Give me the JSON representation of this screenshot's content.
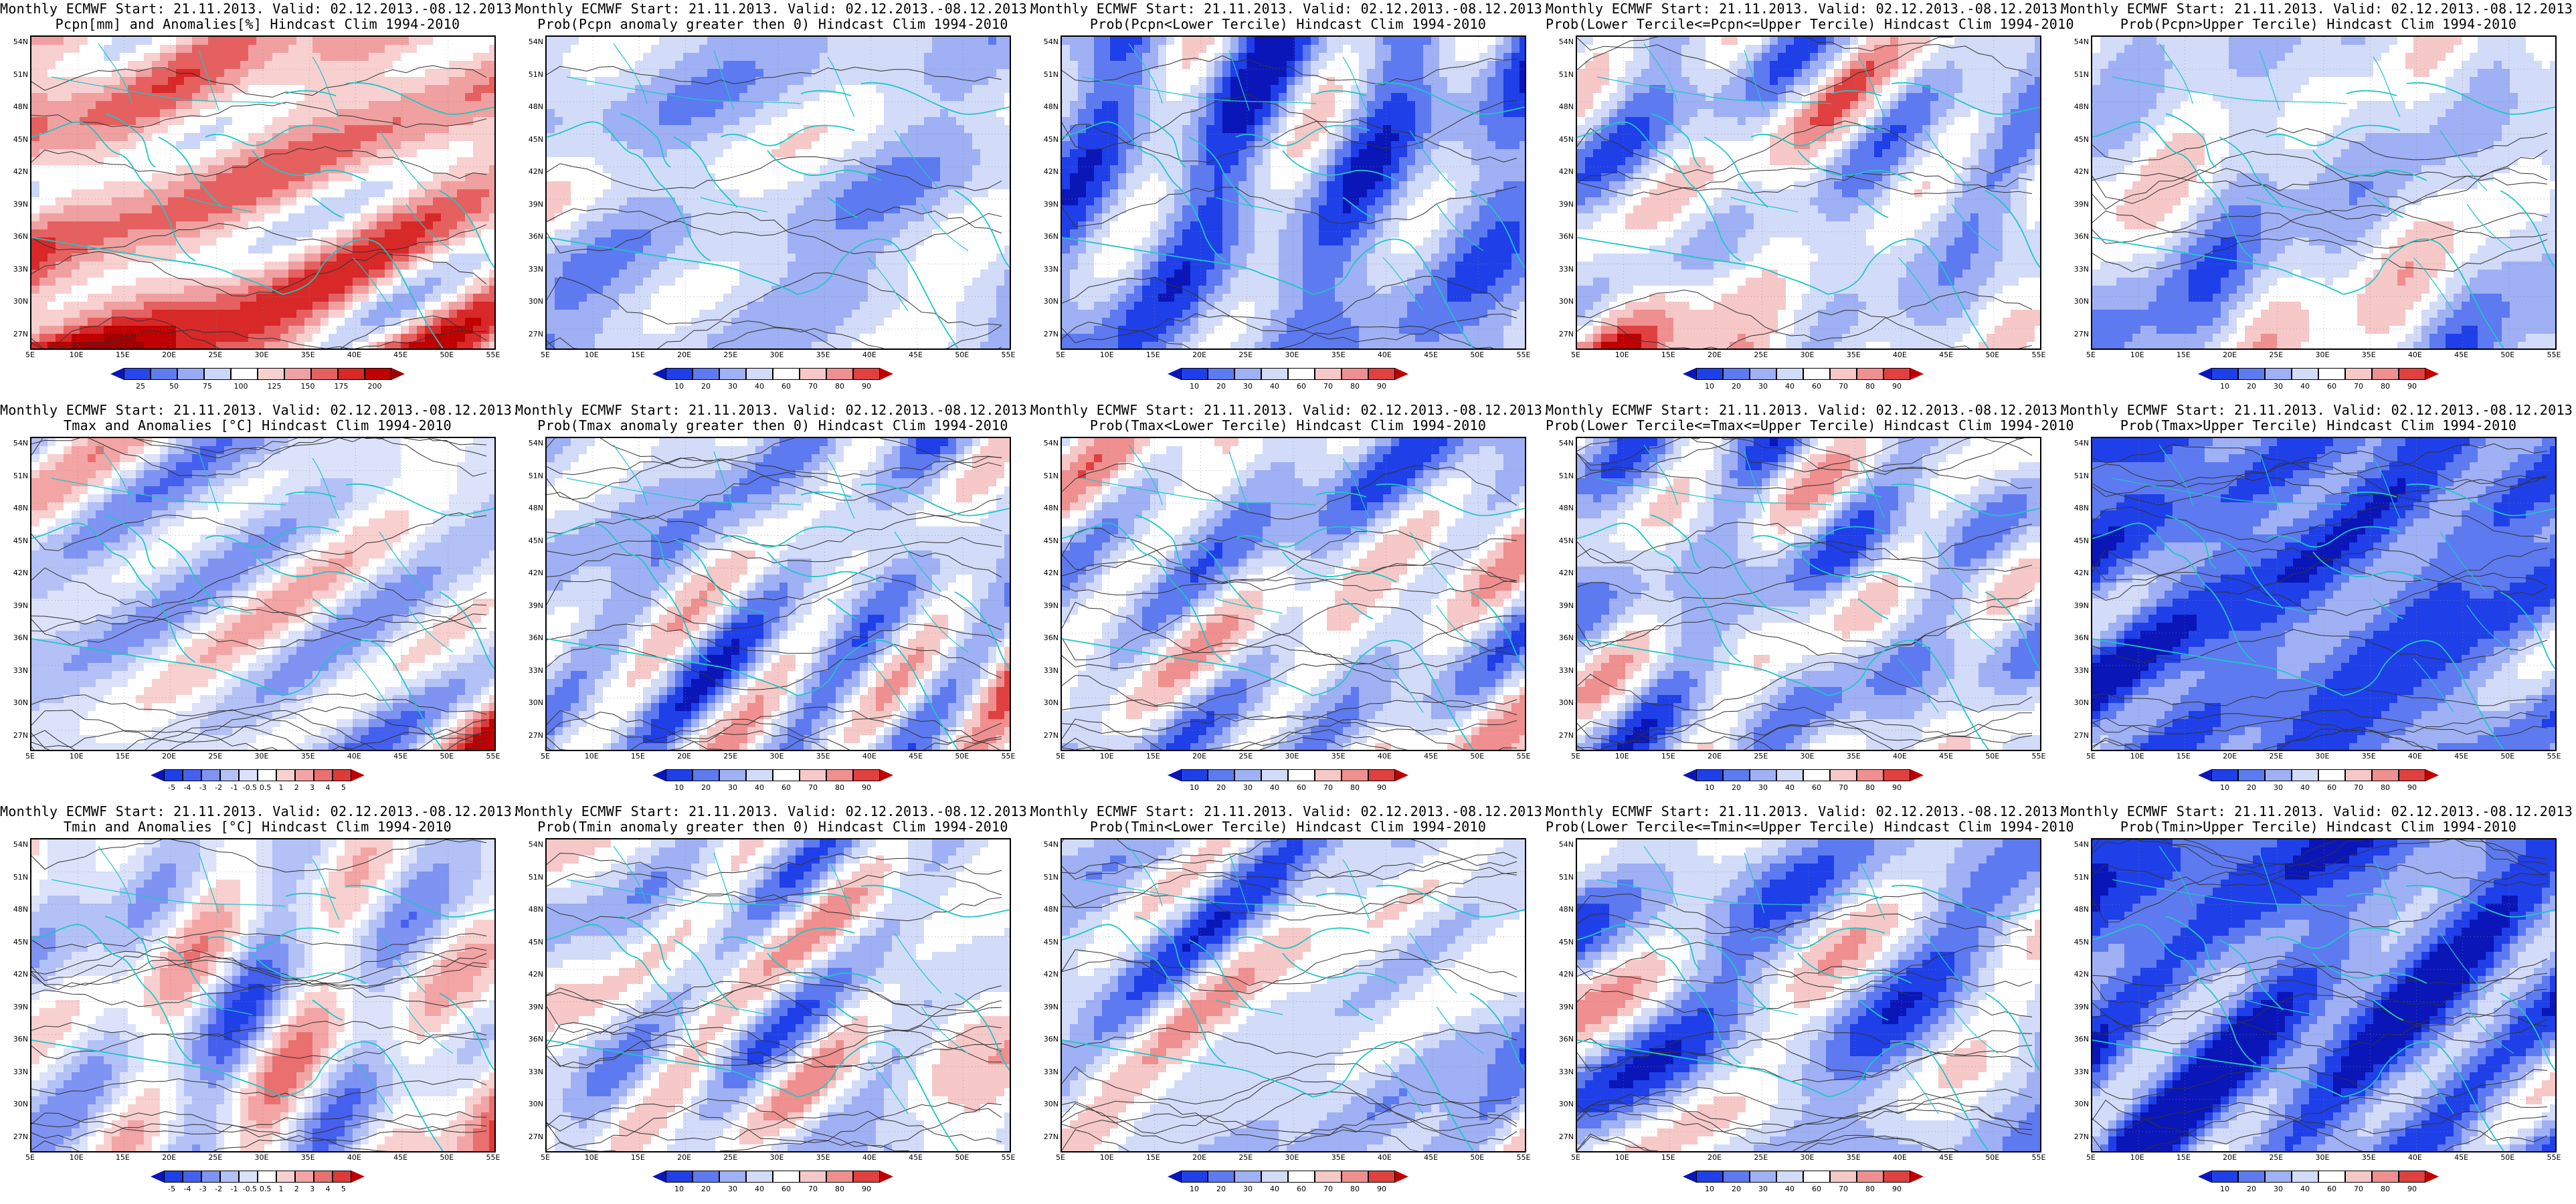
{
  "lat_labels": [
    "54N",
    "51N",
    "48N",
    "45N",
    "42N",
    "39N",
    "36N",
    "33N",
    "30N",
    "27N"
  ],
  "lon_labels": [
    "5E",
    "10E",
    "15E",
    "20E",
    "25E",
    "30E",
    "35E",
    "40E",
    "45E",
    "50E",
    "55E"
  ],
  "colors": {
    "prob": [
      "#0a16b8",
      "#1f3fe8",
      "#5d7af0",
      "#9fb0f4",
      "#d2dbf8",
      "#ffffff",
      "#f6c8c8",
      "#ef8f8f",
      "#e04040",
      "#c00000"
    ],
    "anom": [
      "#0a16b8",
      "#1f3fe8",
      "#4560ee",
      "#7f93f2",
      "#b3c1f6",
      "#dbe2fa",
      "#ffffff",
      "#f8d0d0",
      "#f3a4a4",
      "#ea6f6f",
      "#dd3a3a",
      "#c00000"
    ],
    "pcpn": [
      "#0a16b8",
      "#2846ea",
      "#5f7bf0",
      "#97aaf4",
      "#ccd6f8",
      "#ffffff",
      "#f8d0d0",
      "#f0a0a0",
      "#e66060",
      "#d82828",
      "#c00000",
      "#a00000"
    ]
  },
  "colorbars": {
    "prob": [
      "10",
      "20",
      "30",
      "40",
      "60",
      "70",
      "80",
      "90"
    ],
    "anom": [
      "-5",
      "-4",
      "-3",
      "-2",
      "-1",
      "-0.5",
      "0.5",
      "1",
      "2",
      "3",
      "4",
      "5"
    ],
    "pcpn": [
      "25",
      "50",
      "75",
      "100",
      "125",
      "150",
      "175",
      "200"
    ]
  },
  "panels": [
    {
      "title1": "Monthly ECMWF Start: 21.11.2013. Valid: 02.12.2013.-08.12.2013.",
      "title2": "Pcpn[mm] and Anomalies[%]",
      "suffix": " Hindcast Clim 1994-2010",
      "scale": "pcpn",
      "bias": 0.15,
      "seed": 3,
      "warmSouth": true
    },
    {
      "title1": "Monthly ECMWF Start: 21.11.2013. Valid: 02.12.2013.-08.12.2013.",
      "title2": "Prob(Pcpn anomaly greater then 0)",
      "suffix": " Hindcast Clim 1994-2010",
      "scale": "prob",
      "bias": -0.15,
      "seed": 7
    },
    {
      "title1": "Monthly ECMWF Start: 21.11.2013. Valid: 02.12.2013.-08.12.2013.",
      "title2": "Prob(Pcpn<Lower Tercile)",
      "suffix": " Hindcast Clim 1994-2010",
      "scale": "prob",
      "bias": -0.35,
      "seed": 11
    },
    {
      "title1": "Monthly ECMWF Start: 21.11.2013. Valid: 02.12.2013.-08.12.2013.",
      "title2": "Prob(Lower Tercile<=Pcpn<=Upper Tercile)",
      "suffix": " Hindcast Clim 1994-2010",
      "scale": "prob",
      "bias": -0.1,
      "seed": 13,
      "warmSouth": true
    },
    {
      "title1": "Monthly ECMWF Start: 21.11.2013. Valid: 02.12.2013.-08.12.2013.",
      "title2": "Prob(Pcpn>Upper Tercile)",
      "suffix": " Hindcast Clim 1994-2010",
      "scale": "prob",
      "bias": -0.1,
      "seed": 17
    },
    {
      "title1": "Monthly ECMWF Start: 21.11.2013. Valid: 02.12.2013.-08.12.2013.",
      "title2": "Tmax and Anomalies [°C]",
      "suffix": " Hindcast Clim 1994-2010",
      "scale": "anom",
      "bias": -0.1,
      "seed": 19,
      "warmEast": true
    },
    {
      "title1": "Monthly ECMWF Start: 21.11.2013. Valid: 02.12.2013.-08.12.2013.",
      "title2": "Prob(Tmax anomaly greater then 0)",
      "suffix": " Hindcast Clim 1994-2010",
      "scale": "prob",
      "bias": -0.15,
      "seed": 23,
      "warmEast": true
    },
    {
      "title1": "Monthly ECMWF Start: 21.11.2013. Valid: 02.12.2013.-08.12.2013.",
      "title2": "Prob(Tmax<Lower Tercile)",
      "suffix": " Hindcast Clim 1994-2010",
      "scale": "prob",
      "bias": -0.05,
      "seed": 29
    },
    {
      "title1": "Monthly ECMWF Start: 21.11.2013. Valid: 02.12.2013.-08.12.2013.",
      "title2": "Prob(Lower Tercile<=Tmax<=Upper Tercile)",
      "suffix": " Hindcast Clim 1994-2010",
      "scale": "prob",
      "bias": -0.15,
      "seed": 31
    },
    {
      "title1": "Monthly ECMWF Start: 21.11.2013. Valid: 02.12.2013.-08.12.2013.",
      "title2": "Prob(Tmax>Upper Tercile)",
      "suffix": " Hindcast Clim 1994-2010",
      "scale": "prob",
      "bias": -0.55,
      "seed": 37,
      "warmEast": true
    },
    {
      "title1": "Monthly ECMWF Start: 21.11.2013. Valid: 02.12.2013.-08.12.2013.",
      "title2": "Tmin and Anomalies [°C]",
      "suffix": " Hindcast Clim 1994-2010",
      "scale": "anom",
      "bias": -0.05,
      "seed": 41,
      "warmEast": true
    },
    {
      "title1": "Monthly ECMWF Start: 21.11.2013. Valid: 02.12.2013.-08.12.2013.",
      "title2": "Prob(Tmin anomaly greater then 0)",
      "suffix": " Hindcast Clim 1994-2010",
      "scale": "prob",
      "bias": -0.05,
      "seed": 43,
      "warmEast": true
    },
    {
      "title1": "Monthly ECMWF Start: 21.11.2013. Valid: 02.12.2013.-08.12.2013.",
      "title2": "Prob(Tmin<Lower Tercile)",
      "suffix": " Hindcast Clim 1994-2010",
      "scale": "prob",
      "bias": -0.1,
      "seed": 47
    },
    {
      "title1": "Monthly ECMWF Start: 21.11.2013. Valid: 02.12.2013.-08.12.2013.",
      "title2": "Prob(Lower Tercile<=Tmin<=Upper Tercile)",
      "suffix": " Hindcast Clim 1994-2010",
      "scale": "prob",
      "bias": -0.2,
      "seed": 53
    },
    {
      "title1": "Monthly ECMWF Start: 21.11.2013. Valid: 02.12.2013.-08.12.2013.",
      "title2": "Prob(Tmin>Upper Tercile)",
      "suffix": " Hindcast Clim 1994-2010",
      "scale": "prob",
      "bias": -0.55,
      "seed": 59,
      "warmEast": true
    }
  ]
}
